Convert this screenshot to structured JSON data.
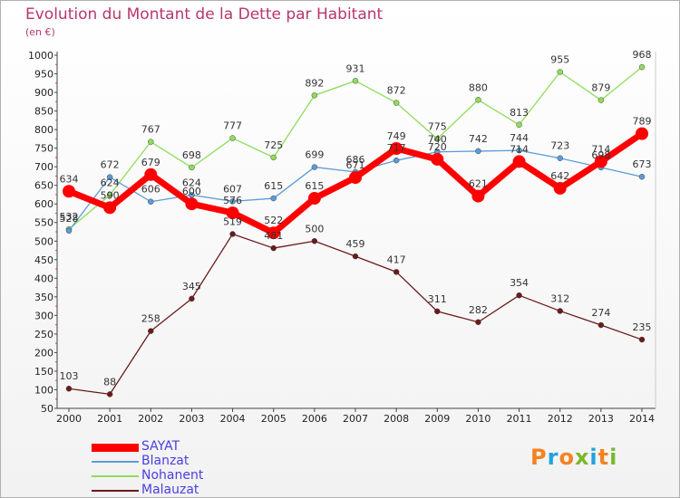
{
  "header": {
    "title": "Evolution du Montant de la Dette par Habitant",
    "unit": "(en €)"
  },
  "logo": {
    "text": "Proxiti",
    "letters": [
      "P",
      "r",
      "o",
      "x",
      "i",
      "t",
      "i"
    ],
    "colors": [
      "#f58220",
      "#1ea3e0",
      "#f58220",
      "#7ab929",
      "#1ea3e0",
      "#f58220",
      "#7ab929"
    ]
  },
  "chart_data": {
    "type": "line",
    "title": "Evolution du Montant de la Dette par Habitant",
    "ylabel": "(en €)",
    "xlabel": "",
    "x": [
      "2000",
      "2001",
      "2002",
      "2003",
      "2004",
      "2005",
      "2006",
      "2007",
      "2008",
      "2009",
      "2010",
      "2011",
      "2012",
      "2013",
      "2014"
    ],
    "ylim": [
      50,
      1000
    ],
    "yticks": [
      50,
      100,
      150,
      200,
      250,
      300,
      350,
      400,
      450,
      500,
      550,
      600,
      650,
      700,
      750,
      800,
      850,
      900,
      950,
      1000
    ],
    "grid": false,
    "legend_position": "bottom-left",
    "series": [
      {
        "name": "SAYAT",
        "color": "#ff0000",
        "values": [
          634,
          590,
          679,
          600,
          576,
          522,
          615,
          671,
          749,
          720,
          621,
          714,
          642,
          714,
          789
        ]
      },
      {
        "name": "Blanzat",
        "color": "#5b9bd5",
        "values": [
          528,
          672,
          606,
          624,
          607,
          615,
          699,
          686,
          717,
          740,
          742,
          744,
          723,
          698,
          673
        ]
      },
      {
        "name": "Nohanent",
        "color": "#8fdc5a",
        "values": [
          532,
          624,
          767,
          698,
          777,
          725,
          892,
          931,
          872,
          775,
          880,
          813,
          955,
          879,
          968
        ]
      },
      {
        "name": "Malauzat",
        "color": "#6b1a1a",
        "values": [
          103,
          88,
          258,
          345,
          519,
          481,
          500,
          459,
          417,
          311,
          282,
          354,
          312,
          274,
          235
        ]
      }
    ]
  }
}
